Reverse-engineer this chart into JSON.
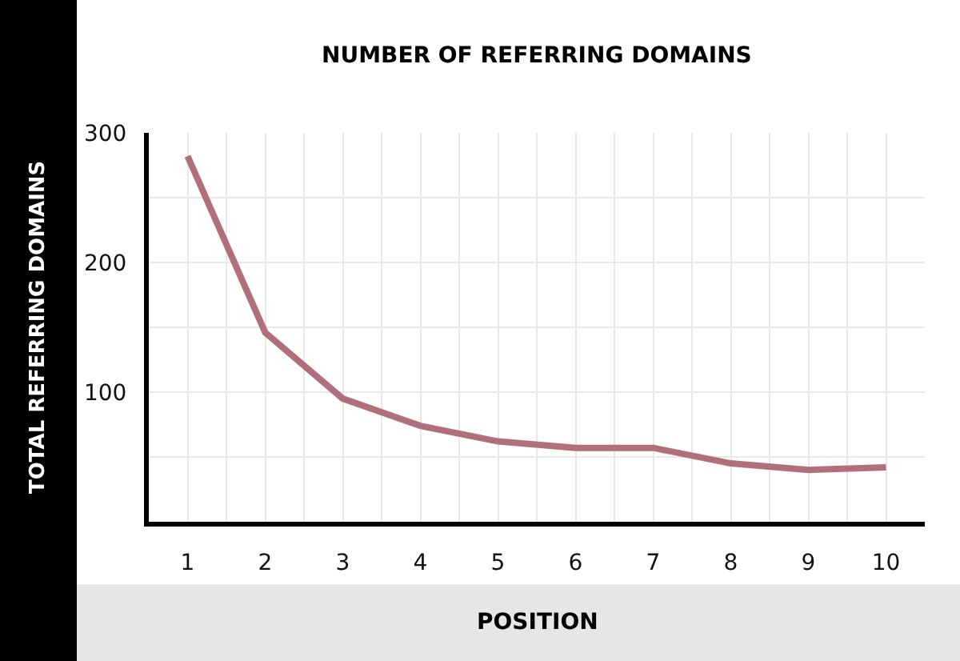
{
  "chart_data": {
    "type": "line",
    "title": "NUMBER OF REFERRING DOMAINS",
    "xlabel": "POSITION",
    "ylabel": "TOTAL REFERRING DOMAINS",
    "x": [
      1,
      2,
      3,
      4,
      5,
      6,
      7,
      8,
      9,
      10
    ],
    "series": [
      {
        "color": "#b06f7a",
        "values": [
          282,
          146,
          95,
          74,
          62,
          57,
          57,
          45,
          40,
          42
        ]
      }
    ],
    "xlim": [
      0.5,
      10.5
    ],
    "xticks": [
      1,
      2,
      3,
      4,
      5,
      6,
      7,
      8,
      9,
      10
    ],
    "ylim": [
      0,
      300
    ],
    "yticks": [
      100,
      200,
      300
    ],
    "grid": true,
    "marker": "none",
    "line_style": "solid"
  }
}
